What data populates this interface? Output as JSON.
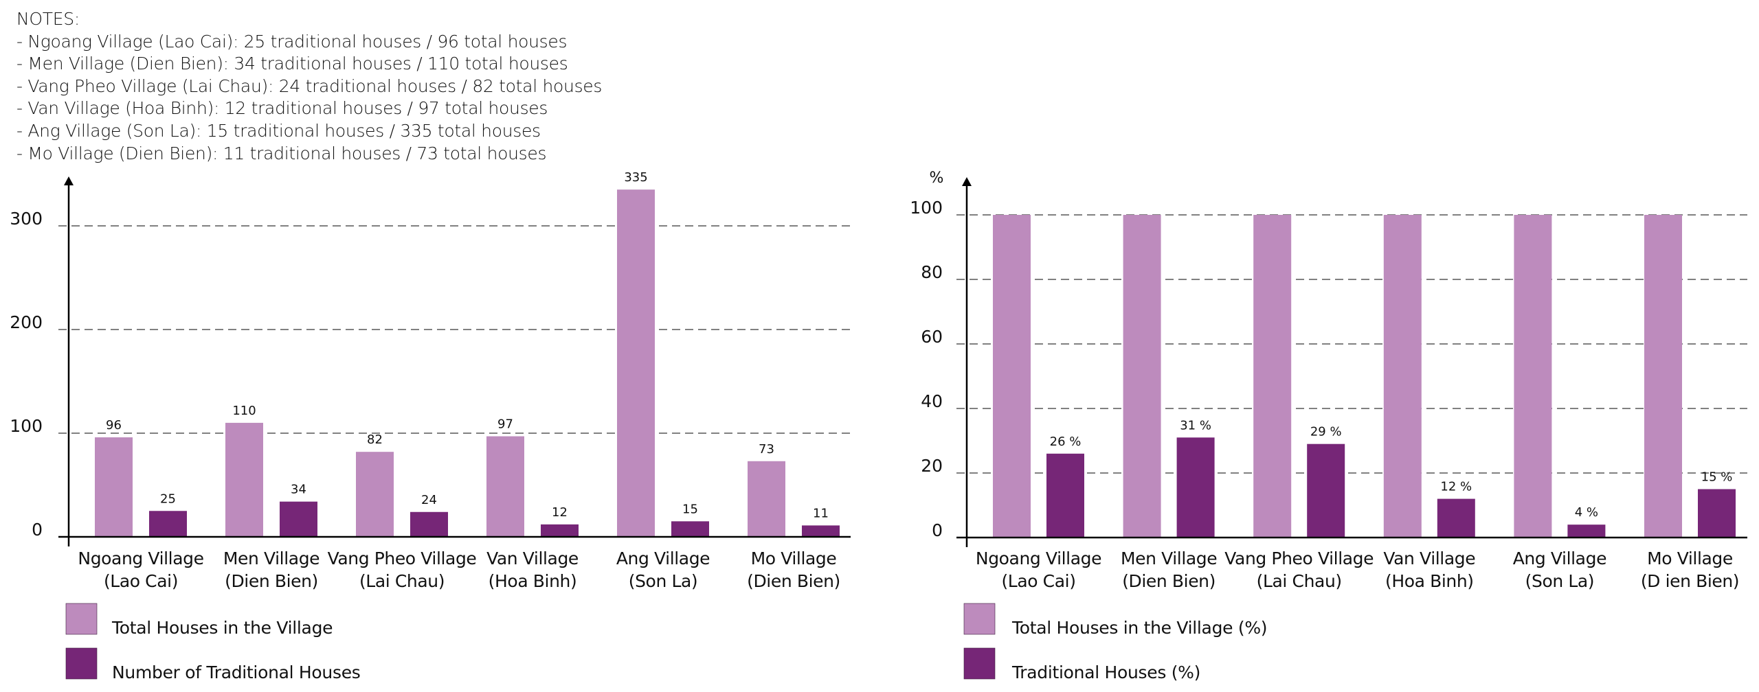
{
  "colors": {
    "total": "#bd8bbd",
    "traditional": "#762677",
    "grid": "#808080",
    "axis": "#000000",
    "text": "#111111"
  },
  "notes": {
    "title": "NOTES:",
    "lines": [
      "- Ngoang Village (Lao Cai): 25 traditional houses / 96 total houses",
      "- Men Village (Dien Bien): 34 traditional houses / 110 total houses",
      "- Vang Pheo Village (Lai Chau): 24 traditional houses / 82 total houses",
      "- Van Village (Hoa Binh): 12 traditional houses / 97 total houses",
      "- Ang Village (Son La): 15 traditional houses / 335 total houses",
      "- Mo Village (Dien Bien): 11 traditional houses / 73 total houses"
    ]
  },
  "chart_data": [
    {
      "type": "bar",
      "title": "",
      "xlabel": "",
      "ylabel": "",
      "categories": [
        [
          "Ngoang Village",
          "(Lao Cai)"
        ],
        [
          "Men Village",
          "(Dien Bien)"
        ],
        [
          "Vang Pheo Village",
          "(Lai Chau)"
        ],
        [
          "Van Village",
          "(Hoa Binh)"
        ],
        [
          "Ang Village",
          "(Son La)"
        ],
        [
          "Mo Village",
          "(Dien Bien)"
        ]
      ],
      "series": [
        {
          "name": "Total Houses in the Village",
          "color_key": "total",
          "values": [
            96,
            110,
            82,
            97,
            335,
            73
          ],
          "labels": [
            "96",
            "110",
            "82",
            "97",
            "335",
            "73"
          ]
        },
        {
          "name": "Number of Traditional Houses",
          "color_key": "traditional",
          "values": [
            25,
            34,
            24,
            12,
            15,
            11
          ],
          "labels": [
            "25",
            "34",
            "24",
            "12",
            "15",
            "11"
          ]
        }
      ],
      "yticks": [
        0,
        100,
        200,
        300
      ],
      "ytick_labels": [
        "0",
        "100",
        "200",
        "300"
      ],
      "ylim": [
        0,
        350
      ],
      "grid": "dashed horizontal",
      "legend_position": "bottom-left",
      "legend": [
        "Total Houses in the Village",
        "Number of Traditional Houses"
      ]
    },
    {
      "type": "bar",
      "title": "",
      "xlabel": "",
      "ylabel": "%",
      "categories": [
        [
          "Ngoang Village",
          "(Lao Cai)"
        ],
        [
          "Men Village",
          "(Dien Bien)"
        ],
        [
          "Vang Pheo Village",
          "(Lai Chau)"
        ],
        [
          "Van Village",
          "(Hoa Binh)"
        ],
        [
          "Ang Village",
          "(Son La)"
        ],
        [
          "Mo Village",
          "(D ien Bien)"
        ]
      ],
      "series": [
        {
          "name": "Total Houses in the Village (%)",
          "color_key": "total",
          "values": [
            100,
            100,
            100,
            100,
            100,
            100
          ],
          "labels": [
            "",
            "",
            "",
            "",
            "",
            ""
          ]
        },
        {
          "name": "Traditional Houses (%)",
          "color_key": "traditional",
          "values": [
            26,
            31,
            29,
            12,
            4,
            15
          ],
          "labels": [
            "26 %",
            "31 %",
            "29 %",
            "12 %",
            "4 %",
            "15 %"
          ]
        }
      ],
      "yticks": [
        0,
        20,
        40,
        60,
        80,
        100
      ],
      "ytick_labels": [
        "0",
        "20",
        "40",
        "60",
        "80",
        "100"
      ],
      "ylim": [
        0,
        115
      ],
      "grid": "dashed horizontal",
      "legend_position": "bottom-left",
      "legend": [
        "Total Houses in the Village (%)",
        "Traditional Houses (%)"
      ]
    }
  ]
}
